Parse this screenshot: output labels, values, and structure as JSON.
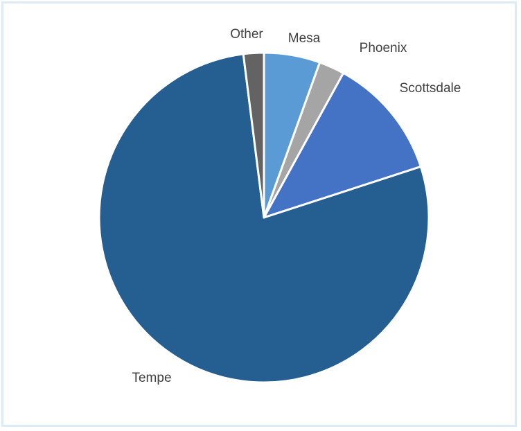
{
  "chart_data": {
    "type": "pie",
    "title": "",
    "slices": [
      {
        "label": "Mesa",
        "value": 5.5,
        "color": "#5b9bd5"
      },
      {
        "label": "Phoenix",
        "value": 2.5,
        "color": "#a5a5a5"
      },
      {
        "label": "Scottsdale",
        "value": 12.0,
        "color": "#4472c4"
      },
      {
        "label": "Tempe",
        "value": 78.0,
        "color": "#255e91"
      },
      {
        "label": "Other",
        "value": 2.0,
        "color": "#636363"
      }
    ],
    "start_angle_deg": 0,
    "direction": "clockwise",
    "legend": "none",
    "labels": "outside-category-names"
  }
}
